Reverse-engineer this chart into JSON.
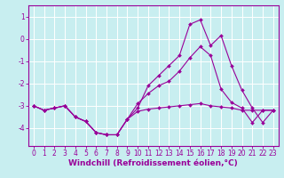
{
  "xlabel": "Windchill (Refroidissement éolien,°C)",
  "bg_color": "#c8eef0",
  "grid_color": "#ffffff",
  "line_color": "#990099",
  "x": [
    0,
    1,
    2,
    3,
    4,
    5,
    6,
    7,
    8,
    9,
    10,
    11,
    12,
    13,
    14,
    15,
    16,
    17,
    18,
    19,
    20,
    21,
    22,
    23
  ],
  "line1": [
    -3.0,
    -3.2,
    -3.1,
    -3.0,
    -3.5,
    -3.7,
    -4.2,
    -4.3,
    -4.3,
    -3.6,
    -3.1,
    -2.1,
    -1.65,
    -1.2,
    -0.75,
    0.65,
    0.85,
    -0.3,
    0.15,
    -1.2,
    -2.3,
    -3.1,
    -3.75,
    -3.2
  ],
  "line2": [
    -3.0,
    -3.2,
    -3.1,
    -3.0,
    -3.5,
    -3.7,
    -4.2,
    -4.3,
    -4.3,
    -3.6,
    -2.9,
    -2.45,
    -2.1,
    -1.9,
    -1.45,
    -0.85,
    -0.35,
    -0.75,
    -2.25,
    -2.85,
    -3.1,
    -3.75,
    -3.2,
    -3.2
  ],
  "line3": [
    -3.0,
    -3.2,
    -3.1,
    -3.0,
    -3.5,
    -3.7,
    -4.2,
    -4.3,
    -4.3,
    -3.6,
    -3.25,
    -3.15,
    -3.1,
    -3.05,
    -3.0,
    -2.95,
    -2.9,
    -3.0,
    -3.05,
    -3.1,
    -3.2,
    -3.2,
    -3.2,
    -3.2
  ],
  "ylim": [
    -4.8,
    1.5
  ],
  "xlim": [
    -0.5,
    23.5
  ],
  "yticks": [
    -4,
    -3,
    -2,
    -1,
    0,
    1
  ],
  "xticks": [
    0,
    1,
    2,
    3,
    4,
    5,
    6,
    7,
    8,
    9,
    10,
    11,
    12,
    13,
    14,
    15,
    16,
    17,
    18,
    19,
    20,
    21,
    22,
    23
  ],
  "tick_fontsize": 5.5,
  "xlabel_fontsize": 6.5
}
